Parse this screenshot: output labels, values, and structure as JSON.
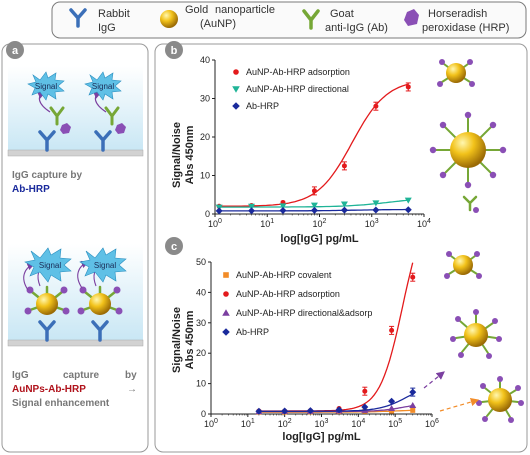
{
  "legend": {
    "rabbit_igg": [
      "Rabbit",
      "IgG"
    ],
    "aunp": [
      "Gold",
      "nanoparticle",
      "(AuNP)"
    ],
    "antibody": [
      "Goat",
      "anti-IgG (Ab)"
    ],
    "hrp": [
      "Horseradish",
      "peroxidase (HRP)"
    ]
  },
  "panel_a": {
    "label": "a",
    "signal_text": "Signal",
    "caption_top": [
      "IgG capture by",
      "Ab-HRP"
    ],
    "caption_bottom": [
      "IgG",
      "capture",
      "by",
      "AuNPs-Ab-HRP",
      "→",
      "Signal enhancement"
    ]
  },
  "colors": {
    "adsorption": "#e31a1c",
    "directional": "#1fb497",
    "ab_hrp": "#1a2a9c",
    "covalent": "#f28c28",
    "directional_adsorp": "#7b3fa0",
    "caption_blue": "#1a2a9c",
    "caption_red": "#b0121b"
  },
  "chart_data": [
    {
      "panel": "b",
      "type": "scatter",
      "x_scale": "log",
      "xlabel": "log[IgG] pg/mL",
      "ylabel": [
        "Signal/Noise",
        "Abs 450nm"
      ],
      "xlim": [
        1,
        10000
      ],
      "ylim": [
        0,
        40
      ],
      "x_ticks": [
        "10^0",
        "10^1",
        "10^2",
        "10^3",
        "10^4"
      ],
      "y_ticks": [
        "0",
        "10",
        "20",
        "30",
        "40"
      ],
      "legend_position": "top-center",
      "series": [
        {
          "name": "AuNP-Ab-HRP adsorption",
          "marker": "circle",
          "color_key": "adsorption",
          "points": [
            [
              1.2,
              2.0
            ],
            [
              5,
              2.2
            ],
            [
              20,
              3.0
            ],
            [
              80,
              6.0
            ],
            [
              300,
              12.5
            ],
            [
              1200,
              28.0
            ],
            [
              5000,
              33.0
            ]
          ],
          "fit": {
            "bottom": 2.0,
            "top": 35.0,
            "ec50": 420,
            "hill": 1.3
          }
        },
        {
          "name": "AuNP-Ab-HRP directional",
          "marker": "triangle-down",
          "color_key": "directional",
          "points": [
            [
              1.2,
              1.8
            ],
            [
              5,
              2.0
            ],
            [
              20,
              2.1
            ],
            [
              80,
              2.3
            ],
            [
              300,
              2.6
            ],
            [
              1200,
              2.9
            ],
            [
              5000,
              3.6
            ]
          ],
          "fit": {
            "bottom": 1.8,
            "top": 4.5,
            "ec50": 2500,
            "hill": 1.0
          }
        },
        {
          "name": "Ab-HRP",
          "marker": "diamond",
          "color_key": "ab_hrp",
          "points": [
            [
              1.2,
              0.8
            ],
            [
              5,
              0.85
            ],
            [
              20,
              0.9
            ],
            [
              80,
              0.95
            ],
            [
              300,
              1.0
            ],
            [
              1200,
              1.05
            ],
            [
              5000,
              1.1
            ]
          ],
          "fit": {
            "bottom": 0.8,
            "top": 1.2,
            "ec50": 500,
            "hill": 1.0
          }
        }
      ]
    },
    {
      "panel": "c",
      "type": "scatter",
      "x_scale": "log",
      "xlabel": "log[IgG] pg/mL",
      "ylabel": [
        "Signal/Noise",
        "Abs 450nm"
      ],
      "xlim": [
        1,
        1000000
      ],
      "ylim": [
        0,
        50
      ],
      "x_ticks": [
        "10^0",
        "10^1",
        "10^2",
        "10^3",
        "10^4",
        "10^5",
        "10^6"
      ],
      "y_ticks": [
        "0",
        "10",
        "20",
        "30",
        "40",
        "50"
      ],
      "legend_position": "top-left",
      "series": [
        {
          "name": "AuNP-Ab-HRP covalent",
          "marker": "square",
          "color_key": "covalent",
          "points": [
            [
              20,
              0.6
            ],
            [
              100,
              0.6
            ],
            [
              500,
              0.7
            ],
            [
              3000,
              0.8
            ],
            [
              15000,
              0.9
            ],
            [
              80000,
              1.0
            ],
            [
              300000,
              1.2
            ]
          ],
          "fit": {
            "bottom": 0.6,
            "top": 1.4,
            "ec50": 100000,
            "hill": 1.0
          }
        },
        {
          "name": "AuNP-Ab-HRP adsorption",
          "marker": "circle",
          "color_key": "adsorption",
          "points": [
            [
              20,
              1.0
            ],
            [
              100,
              1.0
            ],
            [
              500,
              1.1
            ],
            [
              3000,
              1.8
            ],
            [
              15000,
              7.5
            ],
            [
              80000,
              27.5
            ],
            [
              300000,
              45.0
            ]
          ],
          "fit": {
            "bottom": 1.0,
            "top": 70.0,
            "ec50": 160000,
            "hill": 1.4
          }
        },
        {
          "name": "AuNP-Ab-HRP directional&adsorp",
          "marker": "triangle-up",
          "color_key": "directional_adsorp",
          "points": [
            [
              20,
              0.8
            ],
            [
              100,
              0.85
            ],
            [
              500,
              0.9
            ],
            [
              3000,
              1.0
            ],
            [
              15000,
              1.2
            ],
            [
              80000,
              1.8
            ],
            [
              300000,
              2.8
            ]
          ],
          "fit": {
            "bottom": 0.8,
            "top": 4.0,
            "ec50": 200000,
            "hill": 1.2
          }
        },
        {
          "name": "Ab-HRP",
          "marker": "diamond",
          "color_key": "ab_hrp",
          "points": [
            [
              20,
              0.9
            ],
            [
              100,
              1.0
            ],
            [
              500,
              1.1
            ],
            [
              3000,
              1.4
            ],
            [
              15000,
              2.3
            ],
            [
              80000,
              4.2
            ],
            [
              300000,
              7.2
            ]
          ],
          "fit": {
            "bottom": 0.9,
            "top": 10.0,
            "ec50": 200000,
            "hill": 1.2
          }
        }
      ]
    }
  ],
  "panel_b_label": "b",
  "panel_c_label": "c"
}
